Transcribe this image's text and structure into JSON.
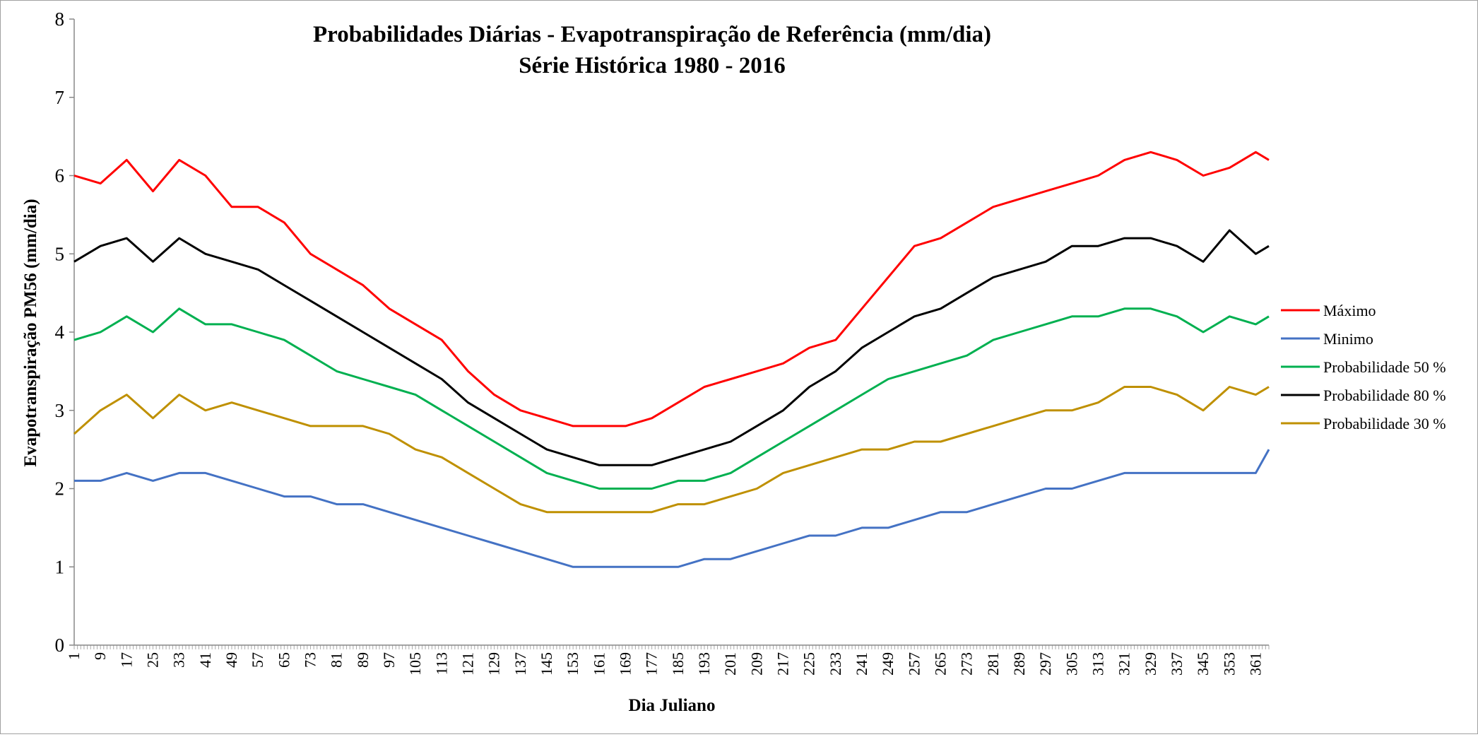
{
  "chart_data": {
    "type": "line",
    "title": "Probabilidades Diárias - Evapotranspiração de Referência (mm/dia)",
    "subtitle": "Série Histórica 1980 - 2016",
    "xlabel": "Dia Juliano",
    "ylabel": "Evapotranspiração  PM56 (mm/dia)",
    "ylim": [
      0,
      8
    ],
    "yticks": [
      0,
      1,
      2,
      3,
      4,
      5,
      6,
      7,
      8
    ],
    "xlim": [
      1,
      365
    ],
    "xticks": [
      1,
      9,
      17,
      25,
      33,
      41,
      49,
      57,
      65,
      73,
      81,
      89,
      97,
      105,
      113,
      121,
      129,
      137,
      145,
      153,
      161,
      169,
      177,
      185,
      193,
      201,
      209,
      217,
      225,
      233,
      241,
      249,
      257,
      265,
      273,
      281,
      289,
      297,
      305,
      313,
      321,
      329,
      337,
      345,
      353,
      361
    ],
    "grid": false,
    "legend_position": "right",
    "series": [
      {
        "name": "Máximo",
        "color": "#ff0000",
        "x": [
          1,
          9,
          17,
          25,
          33,
          41,
          49,
          57,
          65,
          73,
          81,
          89,
          97,
          105,
          113,
          121,
          129,
          137,
          145,
          153,
          161,
          169,
          177,
          185,
          193,
          201,
          209,
          217,
          225,
          233,
          241,
          249,
          257,
          265,
          273,
          281,
          289,
          297,
          305,
          313,
          321,
          329,
          337,
          345,
          353,
          361,
          365
        ],
        "values": [
          6.0,
          5.9,
          6.2,
          5.8,
          6.2,
          6.0,
          5.6,
          5.6,
          5.4,
          5.0,
          4.8,
          4.6,
          4.3,
          4.1,
          3.9,
          3.5,
          3.2,
          3.0,
          2.9,
          2.8,
          2.8,
          2.8,
          2.9,
          3.1,
          3.3,
          3.4,
          3.5,
          3.6,
          3.8,
          3.9,
          4.3,
          4.7,
          5.1,
          5.2,
          5.4,
          5.6,
          5.7,
          5.8,
          5.9,
          6.0,
          6.2,
          6.3,
          6.2,
          6.0,
          6.1,
          6.3,
          6.2
        ]
      },
      {
        "name": "Minimo",
        "color": "#4472c4",
        "x": [
          1,
          9,
          17,
          25,
          33,
          41,
          49,
          57,
          65,
          73,
          81,
          89,
          97,
          105,
          113,
          121,
          129,
          137,
          145,
          153,
          161,
          169,
          177,
          185,
          193,
          201,
          209,
          217,
          225,
          233,
          241,
          249,
          257,
          265,
          273,
          281,
          289,
          297,
          305,
          313,
          321,
          329,
          337,
          345,
          353,
          361,
          365
        ],
        "values": [
          2.1,
          2.1,
          2.2,
          2.1,
          2.2,
          2.2,
          2.1,
          2.0,
          1.9,
          1.9,
          1.8,
          1.8,
          1.7,
          1.6,
          1.5,
          1.4,
          1.3,
          1.2,
          1.1,
          1.0,
          1.0,
          1.0,
          1.0,
          1.0,
          1.1,
          1.1,
          1.2,
          1.3,
          1.4,
          1.4,
          1.5,
          1.5,
          1.6,
          1.7,
          1.7,
          1.8,
          1.9,
          2.0,
          2.0,
          2.1,
          2.2,
          2.2,
          2.2,
          2.2,
          2.2,
          2.2,
          2.5
        ]
      },
      {
        "name": "Probabilidade 50 %",
        "color": "#00b050",
        "x": [
          1,
          9,
          17,
          25,
          33,
          41,
          49,
          57,
          65,
          73,
          81,
          89,
          97,
          105,
          113,
          121,
          129,
          137,
          145,
          153,
          161,
          169,
          177,
          185,
          193,
          201,
          209,
          217,
          225,
          233,
          241,
          249,
          257,
          265,
          273,
          281,
          289,
          297,
          305,
          313,
          321,
          329,
          337,
          345,
          353,
          361,
          365
        ],
        "values": [
          3.9,
          4.0,
          4.2,
          4.0,
          4.3,
          4.1,
          4.1,
          4.0,
          3.9,
          3.7,
          3.5,
          3.4,
          3.3,
          3.2,
          3.0,
          2.8,
          2.6,
          2.4,
          2.2,
          2.1,
          2.0,
          2.0,
          2.0,
          2.1,
          2.1,
          2.2,
          2.4,
          2.6,
          2.8,
          3.0,
          3.2,
          3.4,
          3.5,
          3.6,
          3.7,
          3.9,
          4.0,
          4.1,
          4.2,
          4.2,
          4.3,
          4.3,
          4.2,
          4.0,
          4.2,
          4.1,
          4.2
        ]
      },
      {
        "name": "Probabilidade 80 %",
        "color": "#000000",
        "x": [
          1,
          9,
          17,
          25,
          33,
          41,
          49,
          57,
          65,
          73,
          81,
          89,
          97,
          105,
          113,
          121,
          129,
          137,
          145,
          153,
          161,
          169,
          177,
          185,
          193,
          201,
          209,
          217,
          225,
          233,
          241,
          249,
          257,
          265,
          273,
          281,
          289,
          297,
          305,
          313,
          321,
          329,
          337,
          345,
          353,
          361,
          365
        ],
        "values": [
          4.9,
          5.1,
          5.2,
          4.9,
          5.2,
          5.0,
          4.9,
          4.8,
          4.6,
          4.4,
          4.2,
          4.0,
          3.8,
          3.6,
          3.4,
          3.1,
          2.9,
          2.7,
          2.5,
          2.4,
          2.3,
          2.3,
          2.3,
          2.4,
          2.5,
          2.6,
          2.8,
          3.0,
          3.3,
          3.5,
          3.8,
          4.0,
          4.2,
          4.3,
          4.5,
          4.7,
          4.8,
          4.9,
          5.1,
          5.1,
          5.2,
          5.2,
          5.1,
          4.9,
          5.3,
          5.0,
          5.1
        ]
      },
      {
        "name": "Probabilidade 30 %",
        "color": "#bf9000",
        "x": [
          1,
          9,
          17,
          25,
          33,
          41,
          49,
          57,
          65,
          73,
          81,
          89,
          97,
          105,
          113,
          121,
          129,
          137,
          145,
          153,
          161,
          169,
          177,
          185,
          193,
          201,
          209,
          217,
          225,
          233,
          241,
          249,
          257,
          265,
          273,
          281,
          289,
          297,
          305,
          313,
          321,
          329,
          337,
          345,
          353,
          361,
          365
        ],
        "values": [
          2.7,
          3.0,
          3.2,
          2.9,
          3.2,
          3.0,
          3.1,
          3.0,
          2.9,
          2.8,
          2.8,
          2.8,
          2.7,
          2.5,
          2.4,
          2.2,
          2.0,
          1.8,
          1.7,
          1.7,
          1.7,
          1.7,
          1.7,
          1.8,
          1.8,
          1.9,
          2.0,
          2.2,
          2.3,
          2.4,
          2.5,
          2.5,
          2.6,
          2.6,
          2.7,
          2.8,
          2.9,
          3.0,
          3.0,
          3.1,
          3.3,
          3.3,
          3.2,
          3.0,
          3.3,
          3.2,
          3.3
        ]
      }
    ]
  }
}
